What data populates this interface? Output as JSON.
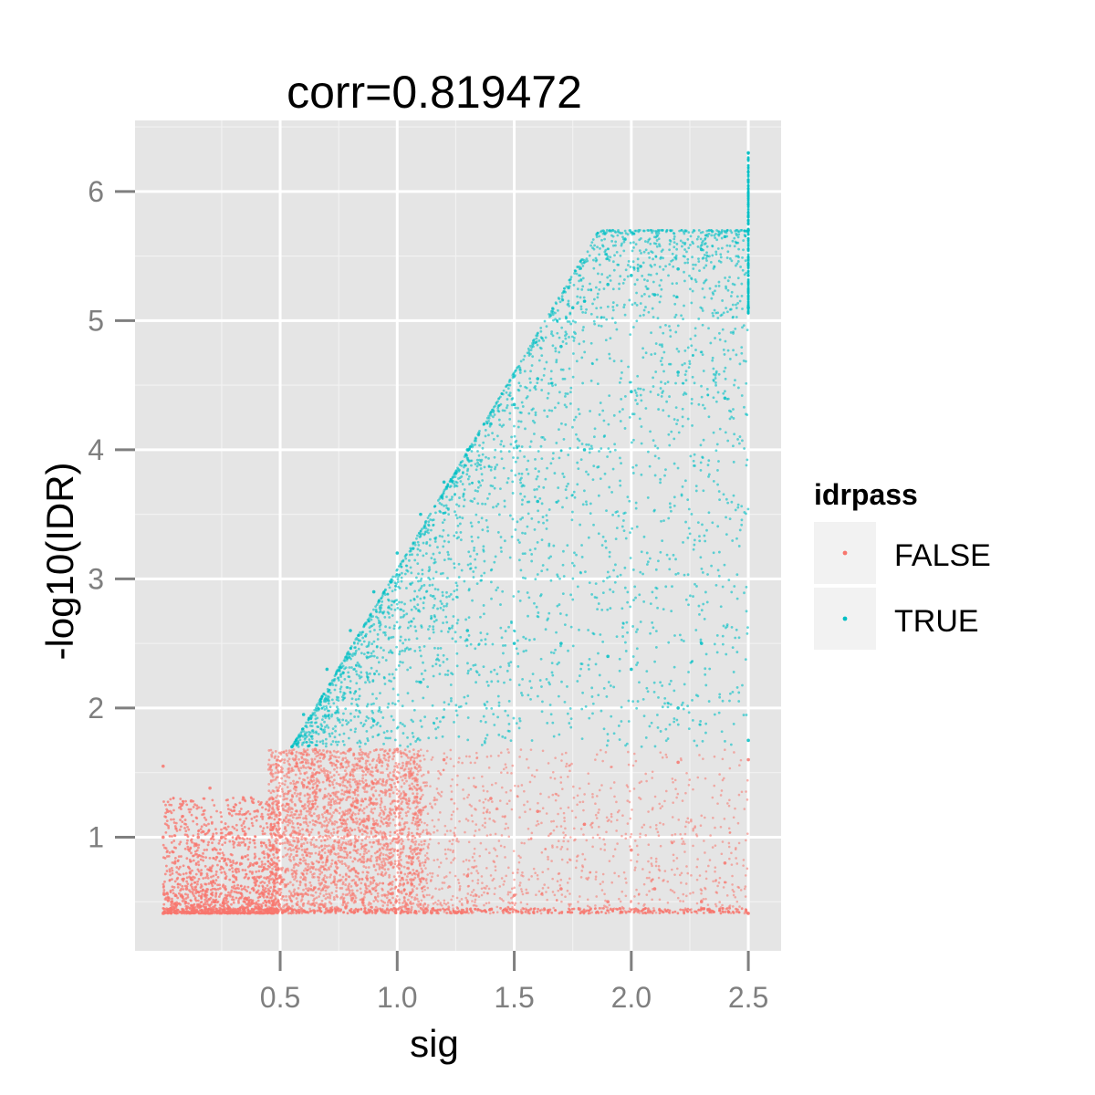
{
  "chart_data": {
    "type": "scatter",
    "title": "corr=0.819472",
    "xlabel": "sig",
    "ylabel": "-log10(IDR)",
    "xlim": [
      -0.12,
      2.64
    ],
    "ylim": [
      0.12,
      6.55
    ],
    "x_ticks": [
      0.5,
      1.0,
      1.5,
      2.0,
      2.5
    ],
    "x_tick_labels": [
      "0.5",
      "1.0",
      "1.5",
      "2.0",
      "2.5"
    ],
    "y_ticks": [
      1,
      2,
      3,
      4,
      5,
      6
    ],
    "y_tick_labels": [
      "1",
      "2",
      "3",
      "4",
      "5",
      "6"
    ],
    "grid": true,
    "legend": {
      "title": "idrpass",
      "position": "right",
      "entries": [
        {
          "label": "FALSE",
          "color": "#F8766D"
        },
        {
          "label": "TRUE",
          "color": "#00BFC4"
        }
      ]
    },
    "series": [
      {
        "name": "FALSE",
        "color": "#F8766D",
        "points": [
          [
            0.0,
            0.41
          ],
          [
            0.0,
            1.55
          ],
          [
            0.0,
            1.0
          ],
          [
            0.02,
            1.2
          ],
          [
            0.05,
            0.8
          ],
          [
            0.08,
            1.25
          ],
          [
            0.1,
            0.6
          ],
          [
            0.12,
            1.28
          ],
          [
            0.15,
            1.0
          ],
          [
            0.2,
            1.38
          ],
          [
            0.22,
            0.5
          ],
          [
            0.25,
            1.0
          ],
          [
            0.3,
            0.7
          ],
          [
            0.35,
            1.02
          ],
          [
            0.4,
            0.8
          ],
          [
            0.45,
            1.25
          ],
          [
            0.5,
            1.0
          ],
          [
            0.55,
            1.65
          ],
          [
            0.6,
            1.4
          ],
          [
            0.65,
            1.68
          ],
          [
            0.7,
            1.2
          ],
          [
            0.8,
            1.68
          ],
          [
            0.9,
            1.1
          ],
          [
            1.0,
            1.68
          ],
          [
            1.1,
            0.9
          ],
          [
            1.2,
            1.6
          ],
          [
            1.3,
            0.7
          ],
          [
            1.4,
            1.3
          ],
          [
            1.5,
            0.55
          ],
          [
            1.6,
            1.2
          ],
          [
            1.7,
            0.6
          ],
          [
            1.8,
            1.1
          ],
          [
            1.9,
            0.5
          ],
          [
            2.0,
            0.9
          ],
          [
            2.1,
            0.6
          ],
          [
            2.2,
            1.58
          ],
          [
            2.3,
            0.5
          ],
          [
            2.4,
            0.8
          ],
          [
            2.5,
            0.41
          ],
          [
            2.5,
            1.6
          ]
        ]
      },
      {
        "name": "TRUE",
        "color": "#00BFC4",
        "points": [
          [
            0.55,
            1.7
          ],
          [
            0.6,
            1.95
          ],
          [
            0.7,
            2.3
          ],
          [
            0.8,
            2.6
          ],
          [
            0.9,
            2.9
          ],
          [
            1.0,
            3.2
          ],
          [
            1.1,
            3.5
          ],
          [
            1.2,
            3.75
          ],
          [
            1.3,
            4.0
          ],
          [
            1.4,
            4.2
          ],
          [
            1.5,
            4.35
          ],
          [
            1.6,
            4.55
          ],
          [
            1.7,
            4.8
          ],
          [
            1.75,
            5.1
          ],
          [
            1.8,
            5.15
          ],
          [
            1.9,
            5.28
          ],
          [
            2.0,
            5.35
          ],
          [
            2.04,
            5.42
          ],
          [
            2.1,
            5.2
          ],
          [
            2.2,
            5.4
          ],
          [
            2.3,
            5.55
          ],
          [
            2.4,
            5.65
          ],
          [
            2.5,
            5.7
          ],
          [
            2.5,
            6.3
          ],
          [
            2.5,
            5.1
          ],
          [
            1.3,
            2.6
          ],
          [
            1.5,
            2.5
          ],
          [
            1.7,
            2.5
          ],
          [
            1.9,
            2.4
          ],
          [
            2.0,
            2.3
          ],
          [
            2.2,
            2.0
          ],
          [
            2.3,
            2.5
          ],
          [
            2.5,
            1.75
          ],
          [
            1.6,
            3.6
          ],
          [
            1.8,
            4.0
          ],
          [
            2.0,
            4.45
          ],
          [
            2.2,
            4.6
          ],
          [
            2.4,
            4.4
          ],
          [
            1.1,
            2.2
          ],
          [
            0.9,
            1.9
          ]
        ]
      }
    ]
  }
}
